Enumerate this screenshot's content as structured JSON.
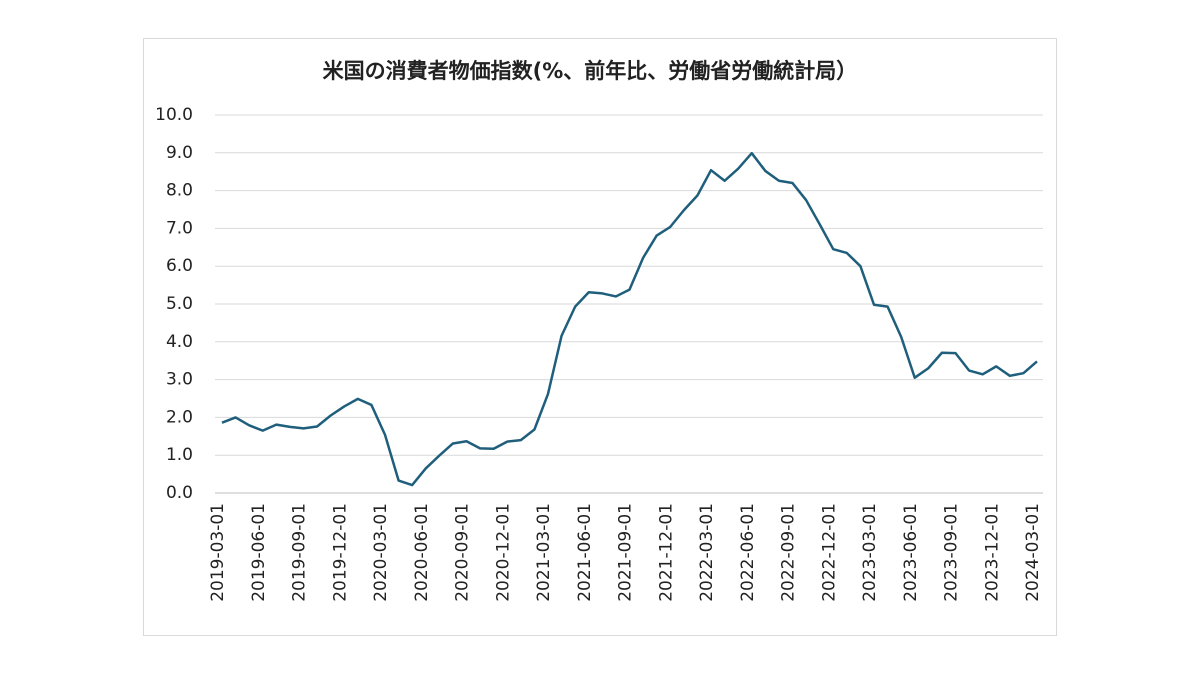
{
  "chart_data": {
    "type": "line",
    "title": "米国の消費者物価指数(%、前年比、労働省労働統計局）",
    "categories": [
      "2019-03-01",
      null,
      null,
      "2019-06-01",
      null,
      null,
      "2019-09-01",
      null,
      null,
      "2019-12-01",
      null,
      null,
      "2020-03-01",
      null,
      null,
      "2020-06-01",
      null,
      null,
      "2020-09-01",
      null,
      null,
      "2020-12-01",
      null,
      null,
      "2021-03-01",
      null,
      null,
      "2021-06-01",
      null,
      null,
      "2021-09-01",
      null,
      null,
      "2021-12-01",
      null,
      null,
      "2022-03-01",
      null,
      null,
      "2022-06-01",
      null,
      null,
      "2022-09-01",
      null,
      null,
      "2022-12-01",
      null,
      null,
      "2023-03-01",
      null,
      null,
      "2023-06-01",
      null,
      null,
      "2023-09-01",
      null,
      null,
      "2023-12-01",
      null,
      null,
      "2024-03-01"
    ],
    "values": [
      1.86,
      2.0,
      1.79,
      1.65,
      1.81,
      1.75,
      1.71,
      1.76,
      2.05,
      2.29,
      2.49,
      2.33,
      1.54,
      0.33,
      0.21,
      0.65,
      0.99,
      1.31,
      1.37,
      1.18,
      1.17,
      1.36,
      1.4,
      1.68,
      2.62,
      4.16,
      4.93,
      5.31,
      5.28,
      5.2,
      5.38,
      6.22,
      6.81,
      7.04,
      7.48,
      7.87,
      8.54,
      8.26,
      8.58,
      8.99,
      8.52,
      8.26,
      8.2,
      7.75,
      7.11,
      6.45,
      6.35,
      6.0,
      4.98,
      4.93,
      4.13,
      3.05,
      3.3,
      3.71,
      3.7,
      3.24,
      3.14,
      3.35,
      3.1,
      3.17,
      3.48
    ],
    "color": "#1f5f7c",
    "ylim": [
      0,
      10
    ],
    "yticks": [
      {
        "value": 0,
        "label": "0.0"
      },
      {
        "value": 1,
        "label": "1.0"
      },
      {
        "value": 2,
        "label": "2.0"
      },
      {
        "value": 3,
        "label": "3.0"
      },
      {
        "value": 4,
        "label": "4.0"
      },
      {
        "value": 5,
        "label": "5.0"
      },
      {
        "value": 6,
        "label": "6.0"
      },
      {
        "value": 7,
        "label": "7.0"
      },
      {
        "value": 8,
        "label": "8.0"
      },
      {
        "value": 9,
        "label": "9.0"
      },
      {
        "value": 10,
        "label": "10.0"
      }
    ],
    "grid": true
  }
}
